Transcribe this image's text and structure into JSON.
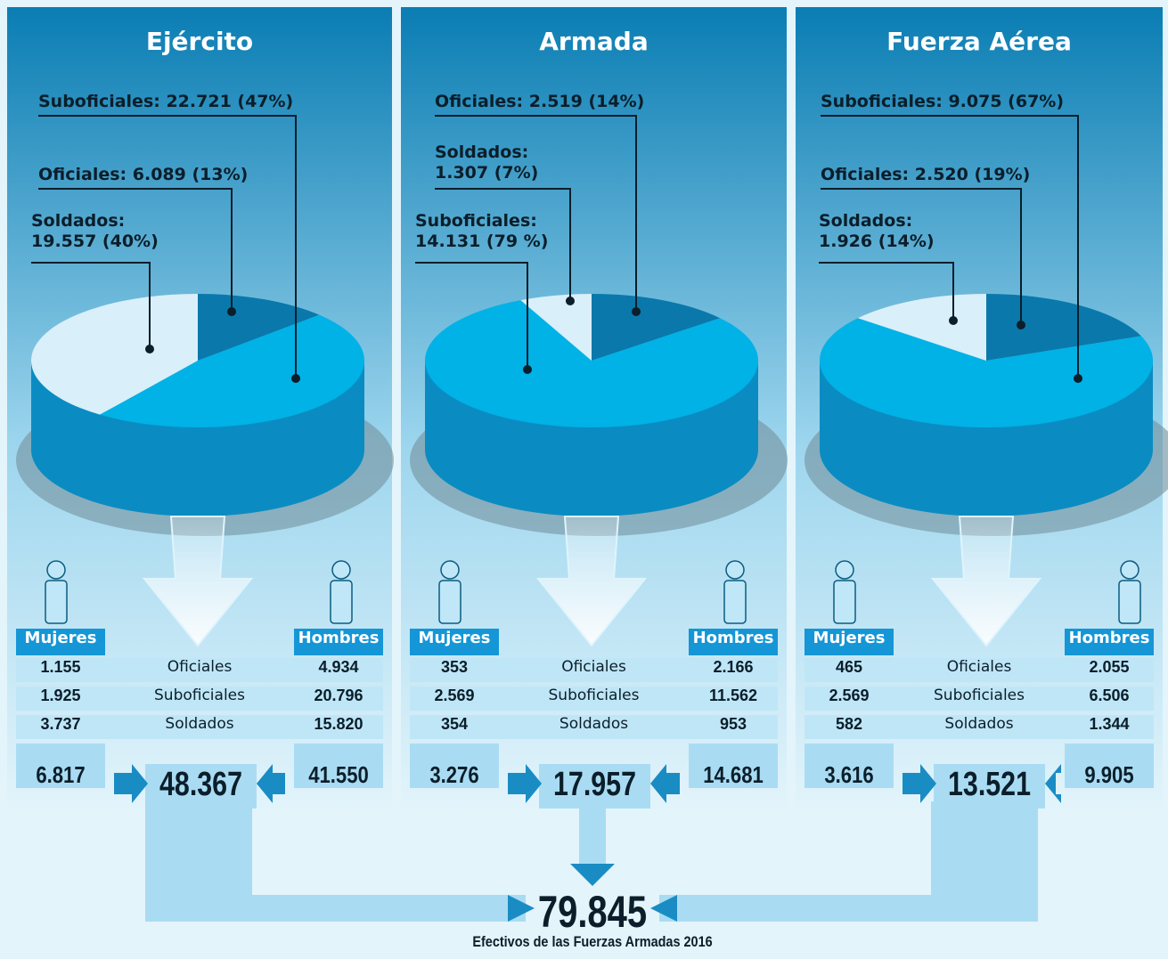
{
  "chart_data": [
    {
      "type": "pie",
      "title": "Ejército",
      "values": [
        13,
        47,
        40
      ],
      "value_labels": [
        "Oficiales: 6.089 (13%)",
        "Suboficiales: 22.721 (47%)",
        "Soldados:\n19.557 (40%)"
      ],
      "colors": [
        "#0a78aa",
        "#00b2e6",
        "#d9eff9"
      ]
    },
    {
      "type": "pie",
      "title": "Armada",
      "values": [
        14,
        79,
        7
      ],
      "value_labels": [
        "Oficiales: 2.519 (14%)",
        "Suboficiales:\n14.131 (79 %)",
        "Soldados:\n1.307 (7%)"
      ],
      "colors": [
        "#0a78aa",
        "#00b2e6",
        "#d9eff9"
      ]
    },
    {
      "type": "pie",
      "title": "Fuerza Aérea",
      "values": [
        19,
        67,
        14
      ],
      "value_labels": [
        "Oficiales: 2.520 (19%)",
        "Suboficiales: 9.075 (67%)",
        "Soldados:\n1.926 (14%)"
      ],
      "colors": [
        "#0a78aa",
        "#00b2e6",
        "#d9eff9"
      ]
    }
  ],
  "tables": [
    {
      "women": "Mujeres",
      "men": "Hombres",
      "rows": [
        [
          "1.155",
          "Oficiales",
          "4.934"
        ],
        [
          "1.925",
          "Suboficiales",
          "20.796"
        ],
        [
          "3.737",
          "Soldados",
          "15.820"
        ]
      ],
      "totals": [
        "6.817",
        "48.367",
        "41.550"
      ]
    },
    {
      "women": "Mujeres",
      "men": "Hombres",
      "rows": [
        [
          "353",
          "Oficiales",
          "2.166"
        ],
        [
          "2.569",
          "Suboficiales",
          "11.562"
        ],
        [
          "354",
          "Soldados",
          "953"
        ]
      ],
      "totals": [
        "3.276",
        "17.957",
        "14.681"
      ]
    },
    {
      "women": "Mujeres",
      "men": "Hombres",
      "rows": [
        [
          "465",
          "Oficiales",
          "2.055"
        ],
        [
          "2.569",
          "Suboficiales",
          "6.506"
        ],
        [
          "582",
          "Soldados",
          "1.344"
        ]
      ],
      "totals": [
        "3.616",
        "13.521",
        "9.905"
      ]
    }
  ],
  "grand_total": "79.845",
  "caption": "Efectivos de las Fuerzas Armadas 2016"
}
